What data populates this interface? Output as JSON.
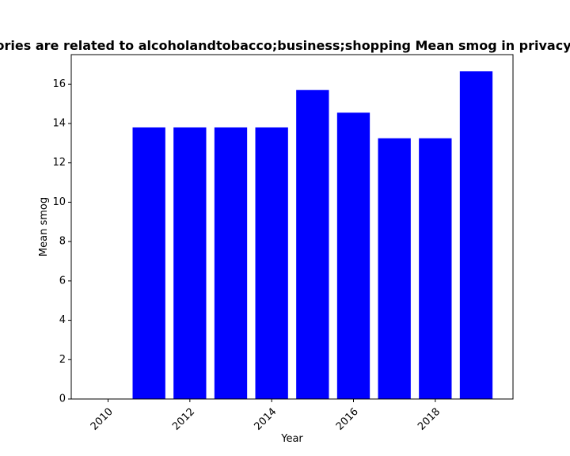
{
  "chart_data": {
    "type": "bar",
    "title": "Categories are related to alcoholandtobacco;business;shopping Mean smog in privacy policies",
    "xlabel": "Year",
    "ylabel": "Mean smog",
    "x": [
      2010,
      2011,
      2012,
      2013,
      2014,
      2015,
      2016,
      2017,
      2018,
      2019
    ],
    "values": [
      0,
      13.8,
      13.8,
      13.8,
      13.8,
      15.7,
      14.55,
      13.25,
      13.25,
      16.65
    ],
    "xlim": [
      2009.1,
      2019.9
    ],
    "ylim": [
      0,
      17.5
    ],
    "xticks": [
      2010,
      2012,
      2014,
      2016,
      2018
    ],
    "xtick_labels": [
      "2010",
      "2012",
      "2014",
      "2016",
      "2018"
    ],
    "yticks": [
      0,
      2,
      4,
      6,
      8,
      10,
      12,
      14,
      16
    ],
    "ytick_labels": [
      "0",
      "2",
      "4",
      "6",
      "8",
      "10",
      "12",
      "14",
      "16"
    ],
    "bar_color": "#0000ff",
    "grid": false,
    "legend": "none"
  }
}
